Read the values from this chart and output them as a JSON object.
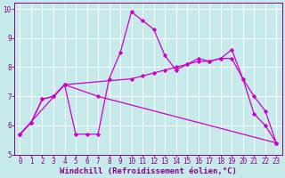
{
  "xlabel": "Windchill (Refroidissement éolien,°C)",
  "background_color": "#c6eaea",
  "grid_color": "#ffffff",
  "line_color": "#cc00cc",
  "xlim": [
    -0.5,
    23.5
  ],
  "ylim": [
    5,
    10.2
  ],
  "xticks": [
    0,
    1,
    2,
    3,
    4,
    5,
    6,
    7,
    8,
    9,
    10,
    11,
    12,
    13,
    14,
    15,
    16,
    17,
    18,
    19,
    20,
    21,
    22,
    23
  ],
  "yticks": [
    5,
    6,
    7,
    8,
    9,
    10
  ],
  "line1_x": [
    0,
    1,
    2,
    3,
    4,
    5,
    6,
    7,
    8,
    9,
    10,
    11,
    12,
    13,
    14,
    15,
    16,
    17,
    18,
    19,
    20,
    21,
    22,
    23
  ],
  "line1_y": [
    5.7,
    6.1,
    6.9,
    7.0,
    7.4,
    5.7,
    5.7,
    5.7,
    7.6,
    8.5,
    9.9,
    9.6,
    9.3,
    8.4,
    7.9,
    8.1,
    8.3,
    8.2,
    8.3,
    8.6,
    7.6,
    6.4,
    6.0,
    5.4
  ],
  "line2_x": [
    0,
    1,
    2,
    3,
    4,
    10,
    11,
    12,
    13,
    14,
    15,
    16,
    17,
    18,
    19,
    20,
    21,
    22,
    23
  ],
  "line2_y": [
    5.7,
    6.1,
    6.9,
    7.0,
    7.4,
    7.6,
    7.7,
    7.8,
    7.9,
    8.0,
    8.1,
    8.2,
    8.2,
    8.3,
    8.3,
    7.6,
    7.0,
    6.5,
    5.4
  ],
  "line3_x": [
    0,
    4,
    7,
    23
  ],
  "line3_y": [
    5.7,
    7.4,
    7.0,
    5.4
  ],
  "font_color": "#880088",
  "tick_fontsize": 5.5,
  "label_fontsize": 6.5
}
